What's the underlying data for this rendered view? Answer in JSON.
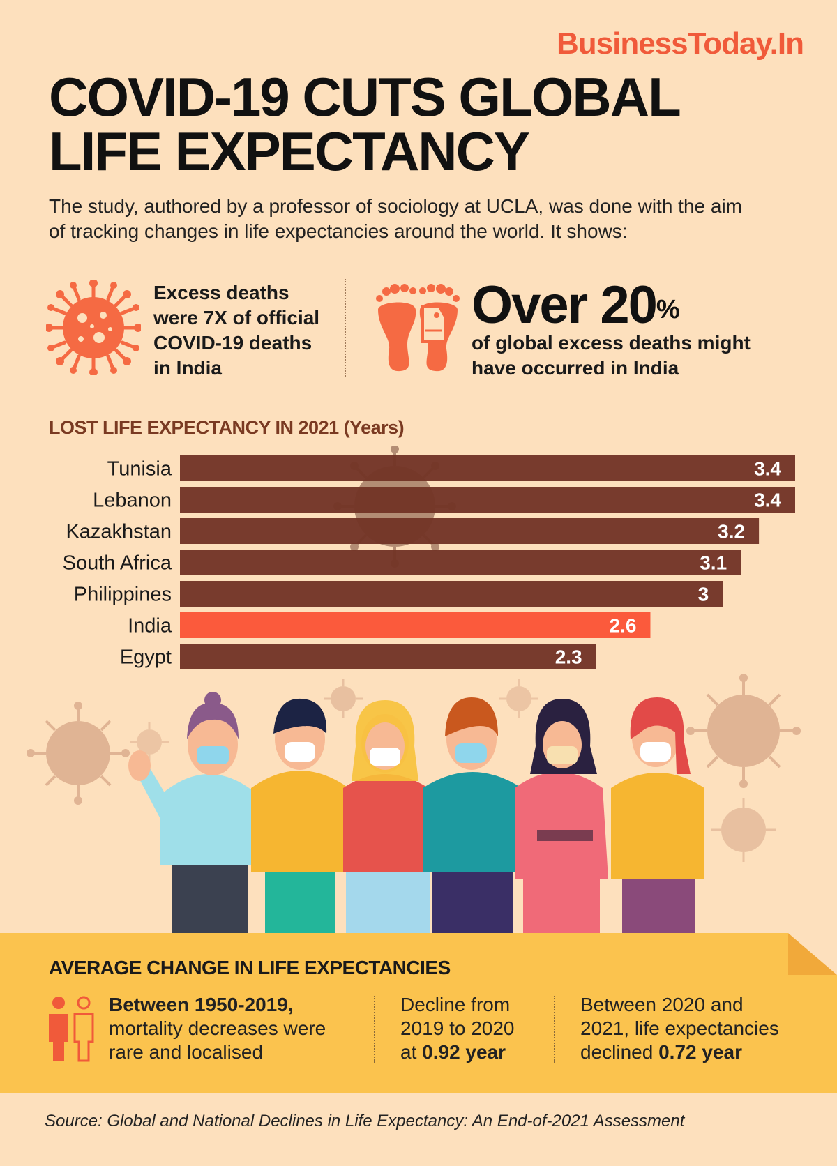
{
  "brand": "BusinessToday.In",
  "title": {
    "line1": "COVID-19 CUTS GLOBAL",
    "line2": "LIFE EXPECTANCY"
  },
  "intro": "The study, authored by a professor of sociology at UCLA, was done with the aim of tracking changes in life expectancies around the world. It shows:",
  "stats": {
    "left": {
      "icon": "virus-icon",
      "lines": [
        "Excess deaths",
        "were 7X of official",
        "COVID-19 deaths",
        "in India"
      ]
    },
    "right": {
      "icon": "footprints-tag-icon",
      "big_value": "Over 20",
      "big_unit": "%",
      "lines": [
        "of global excess deaths might",
        "have occurred in India"
      ]
    }
  },
  "chart_data": {
    "type": "bar",
    "orientation": "horizontal",
    "title": "LOST LIFE EXPECTANCY IN 2021 (Years)",
    "categories": [
      "Tunisia",
      "Lebanon",
      "Kazakhstan",
      "South Africa",
      "Philippines",
      "India",
      "Egypt"
    ],
    "values": [
      3.4,
      3.4,
      3.2,
      3.1,
      3,
      2.6,
      2.3
    ],
    "value_labels": [
      "3.4",
      "3.4",
      "3.2",
      "3.1",
      "3",
      "2.6",
      "2.3"
    ],
    "highlight": "India",
    "xlim": [
      0,
      3.4
    ],
    "grid": false,
    "colors": {
      "bar": "#723427",
      "highlight": "#fb5a3c"
    }
  },
  "bottom": {
    "title": "AVERAGE CHANGE IN LIFE EXPECTANCIES",
    "col1": {
      "bold": "Between 1950-2019,",
      "rest1": "mortality decreases were",
      "rest2": "rare and localised"
    },
    "col2": {
      "line1": "Decline from",
      "line2": "2019 to 2020",
      "line3_pre": "at ",
      "line3_bold": "0.92 year"
    },
    "col3": {
      "line1": "Between 2020 and",
      "line2": "2021, life expectancies",
      "line3_pre": "declined ",
      "line3_bold": "0.72 year"
    }
  },
  "source": "Source: Global and National Declines in Life Expectancy: An End-of-2021 Assessment",
  "colors": {
    "background": "#fde0bd",
    "accent": "#f05a3a",
    "band": "#fbc34e",
    "heading_brown": "#7a3a22"
  }
}
